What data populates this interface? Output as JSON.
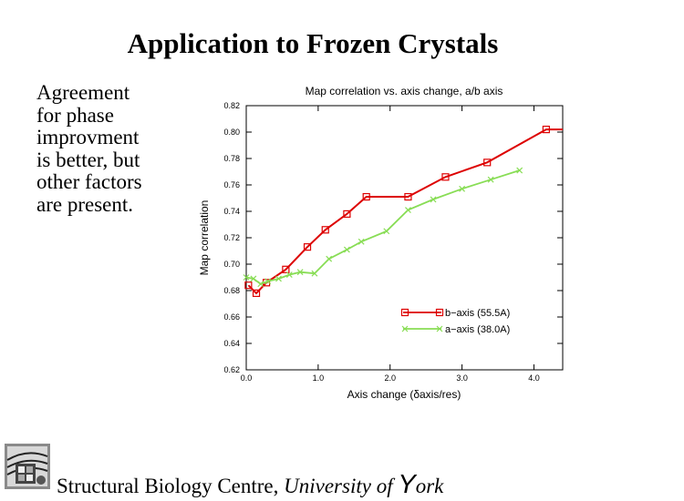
{
  "slide": {
    "title": "Application to Frozen Crystals",
    "body_lines": [
      "Agreement",
      "for phase",
      "improvment",
      "is better, but",
      "other factors",
      "are present."
    ],
    "footer": {
      "centre": "Structural Biology Centre,",
      "university_prefix": "University of ",
      "university_initial": "Y",
      "university_rest": "ork"
    }
  },
  "colors": {
    "b_axis": "#dd0000",
    "a_axis": "#88dd55",
    "axis": "#000000"
  },
  "chart_data": {
    "type": "line",
    "title": "Map correlation vs. axis change, a/b axis",
    "xlabel": "Axis change (δaxis/res)",
    "ylabel": "Map correlation",
    "xlim": [
      0.0,
      4.4
    ],
    "ylim": [
      0.62,
      0.82
    ],
    "xticks": [
      0.0,
      1.0,
      2.0,
      3.0,
      4.0
    ],
    "xtick_labels": [
      "0.0",
      "1.0",
      "2.0",
      "3.0",
      "4.0"
    ],
    "yticks": [
      0.62,
      0.64,
      0.66,
      0.68,
      0.7,
      0.72,
      0.74,
      0.76,
      0.78,
      0.8,
      0.82
    ],
    "ytick_labels": [
      "0.62",
      "0.64",
      "0.66",
      "0.68",
      "0.70",
      "0.72",
      "0.74",
      "0.76",
      "0.78",
      "0.80",
      "0.82"
    ],
    "legend_position": "lower-right",
    "series": [
      {
        "name": "b−axis (55.5A)",
        "marker": "square",
        "color_key": "b_axis",
        "x": [
          0.03,
          0.14,
          0.28,
          0.55,
          0.85,
          1.1,
          1.4,
          1.67,
          2.25,
          2.77,
          3.35,
          4.17,
          4.4
        ],
        "y": [
          0.684,
          0.678,
          0.686,
          0.696,
          0.713,
          0.726,
          0.738,
          0.751,
          0.751,
          0.766,
          0.777,
          0.802,
          0.802
        ]
      },
      {
        "name": "a−axis (38.0A)",
        "marker": "cross",
        "color_key": "a_axis",
        "x": [
          0.0,
          0.1,
          0.2,
          0.3,
          0.45,
          0.6,
          0.75,
          0.95,
          1.15,
          1.4,
          1.6,
          1.95,
          2.25,
          2.6,
          3.0,
          3.4,
          3.8
        ],
        "y": [
          0.69,
          0.689,
          0.685,
          0.687,
          0.689,
          0.692,
          0.694,
          0.693,
          0.704,
          0.711,
          0.717,
          0.725,
          0.741,
          0.749,
          0.757,
          0.764,
          0.771
        ]
      }
    ]
  }
}
